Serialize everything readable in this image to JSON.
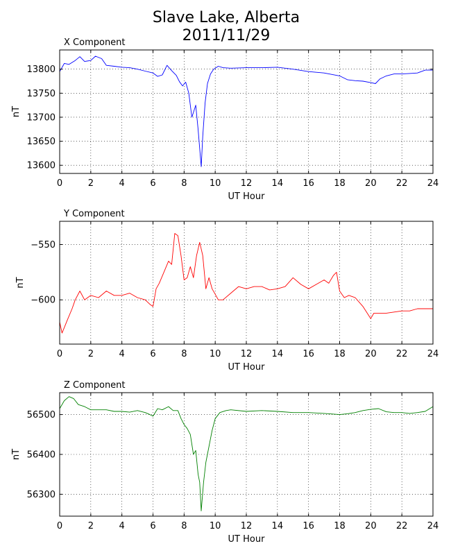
{
  "figure": {
    "title_line1": "Slave Lake, Alberta",
    "title_line2": "2011/11/29"
  },
  "chart_data": [
    {
      "type": "line",
      "title": "X Component",
      "xlabel": "UT Hour",
      "ylabel": "nT",
      "color": "#0000ff",
      "xlim": [
        0,
        24
      ],
      "ylim": [
        13583,
        13840
      ],
      "xticks": [
        0,
        2,
        4,
        6,
        8,
        10,
        12,
        14,
        16,
        18,
        20,
        22,
        24
      ],
      "yticks": [
        13600,
        13650,
        13700,
        13750,
        13800
      ],
      "grid": true,
      "series": [
        {
          "x": [
            0,
            0.3,
            0.6,
            1.0,
            1.3,
            1.6,
            2.0,
            2.3,
            2.7,
            3.0,
            3.5,
            4.0,
            4.5,
            5.0,
            5.5,
            6.0,
            6.3,
            6.6,
            6.9,
            7.2,
            7.5,
            7.7,
            7.9,
            8.1,
            8.3,
            8.5,
            8.6,
            8.75,
            8.9,
            9.0,
            9.1,
            9.2,
            9.35,
            9.5,
            9.7,
            9.9,
            10.2,
            10.5,
            11,
            12,
            13,
            14,
            15,
            16,
            17,
            18,
            18.5,
            19,
            19.5,
            20,
            20.3,
            20.6,
            21,
            21.5,
            22,
            22.5,
            23,
            23.5,
            24
          ],
          "y": [
            13795,
            13812,
            13810,
            13818,
            13826,
            13816,
            13818,
            13827,
            13822,
            13808,
            13806,
            13804,
            13803,
            13800,
            13796,
            13792,
            13785,
            13788,
            13808,
            13797,
            13787,
            13774,
            13765,
            13773,
            13750,
            13700,
            13710,
            13725,
            13675,
            13635,
            13597,
            13660,
            13730,
            13770,
            13790,
            13800,
            13806,
            13803,
            13802,
            13803,
            13803,
            13804,
            13800,
            13795,
            13792,
            13786,
            13778,
            13776,
            13775,
            13772,
            13770,
            13780,
            13786,
            13790,
            13790,
            13791,
            13792,
            13798,
            13798
          ]
        }
      ]
    },
    {
      "type": "line",
      "title": "Y Component",
      "xlabel": "UT Hour",
      "ylabel": "nT",
      "color": "#ff0000",
      "xlim": [
        0,
        24
      ],
      "ylim": [
        -640,
        -529
      ],
      "xticks": [
        0,
        2,
        4,
        6,
        8,
        10,
        12,
        14,
        16,
        18,
        20,
        22,
        24
      ],
      "yticks": [
        -550,
        -600
      ],
      "grid": true,
      "series": [
        {
          "x": [
            0,
            0.15,
            0.3,
            0.5,
            0.8,
            1.0,
            1.3,
            1.6,
            2.0,
            2.5,
            3.0,
            3.5,
            4.0,
            4.5,
            5.0,
            5.5,
            5.8,
            6.0,
            6.2,
            6.4,
            6.7,
            7.0,
            7.2,
            7.4,
            7.6,
            7.8,
            8.0,
            8.2,
            8.4,
            8.6,
            8.8,
            9.0,
            9.2,
            9.4,
            9.6,
            9.8,
            10.0,
            10.2,
            10.5,
            11.0,
            11.5,
            12.0,
            12.5,
            13.0,
            13.5,
            14.0,
            14.5,
            15.0,
            15.5,
            16.0,
            16.5,
            17.0,
            17.3,
            17.6,
            17.8,
            18.0,
            18.3,
            18.6,
            19.0,
            19.5,
            20.0,
            20.2,
            20.5,
            21.0,
            21.5,
            22.0,
            22.5,
            23.0,
            23.5,
            24.0
          ],
          "y": [
            -620,
            -630,
            -625,
            -618,
            -608,
            -600,
            -592,
            -600,
            -596,
            -598,
            -592,
            -596,
            -596,
            -594,
            -598,
            -600,
            -604,
            -606,
            -590,
            -585,
            -575,
            -565,
            -568,
            -540,
            -542,
            -560,
            -582,
            -580,
            -570,
            -580,
            -560,
            -548,
            -560,
            -590,
            -580,
            -590,
            -595,
            -600,
            -600,
            -594,
            -588,
            -590,
            -588,
            -588,
            -591,
            -590,
            -588,
            -580,
            -586,
            -590,
            -586,
            -582,
            -585,
            -578,
            -575,
            -592,
            -598,
            -596,
            -598,
            -606,
            -617,
            -612,
            -612,
            -612,
            -611,
            -610,
            -610,
            -608,
            -608,
            -608
          ]
        }
      ]
    },
    {
      "type": "line",
      "title": "Z Component",
      "xlabel": "UT Hour",
      "ylabel": "nT",
      "color": "#008000",
      "xlim": [
        0,
        24
      ],
      "ylim": [
        56245,
        56555
      ],
      "xticks": [
        0,
        2,
        4,
        6,
        8,
        10,
        12,
        14,
        16,
        18,
        20,
        22,
        24
      ],
      "yticks": [
        56300,
        56400,
        56500
      ],
      "grid": true,
      "series": [
        {
          "x": [
            0,
            0.3,
            0.6,
            0.9,
            1.2,
            1.6,
            2.0,
            2.5,
            3.0,
            3.5,
            4.0,
            4.5,
            5.0,
            5.5,
            5.8,
            6.0,
            6.3,
            6.6,
            7.0,
            7.3,
            7.6,
            7.8,
            8.0,
            8.2,
            8.4,
            8.6,
            8.75,
            8.9,
            9.0,
            9.1,
            9.25,
            9.4,
            9.6,
            9.8,
            10.0,
            10.3,
            10.7,
            11.0,
            12,
            13,
            14,
            15,
            16,
            17,
            18,
            18.5,
            19,
            19.5,
            20,
            20.5,
            21,
            21.5,
            22,
            22.5,
            23,
            23.5,
            24
          ],
          "y": [
            56515,
            56535,
            56545,
            56540,
            56525,
            56520,
            56512,
            56512,
            56512,
            56508,
            56508,
            56506,
            56510,
            56505,
            56500,
            56496,
            56515,
            56512,
            56520,
            56510,
            56510,
            56490,
            56475,
            56465,
            56450,
            56400,
            56410,
            56350,
            56330,
            56258,
            56330,
            56380,
            56420,
            56460,
            56490,
            56505,
            56510,
            56512,
            56508,
            56510,
            56508,
            56505,
            56505,
            56503,
            56500,
            56502,
            56505,
            56510,
            56513,
            56515,
            56507,
            56505,
            56505,
            56503,
            56505,
            56508,
            56520
          ]
        }
      ]
    }
  ]
}
